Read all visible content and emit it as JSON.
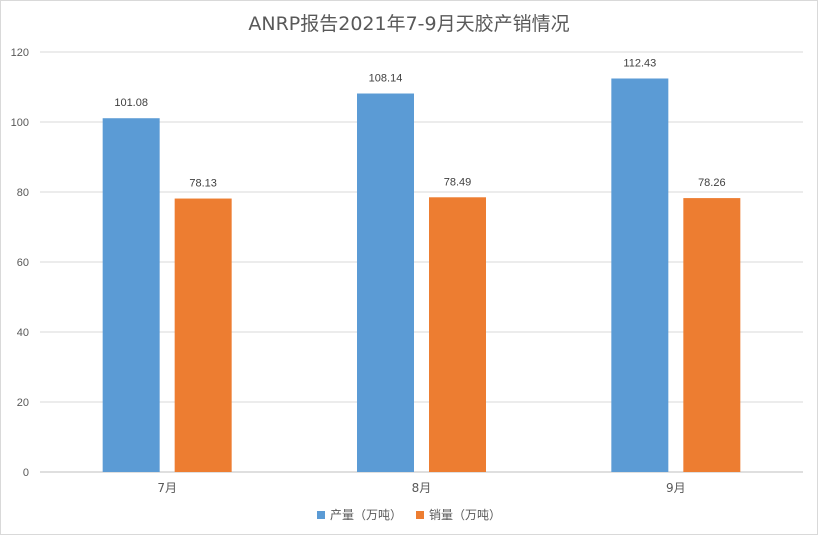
{
  "chart_data": {
    "type": "bar",
    "title": "ANRP报告2021年7-9月天胶产销情况",
    "categories": [
      "7月",
      "8月",
      "9月"
    ],
    "series": [
      {
        "name": "产量（万吨）",
        "values": [
          101.08,
          108.14,
          112.43
        ],
        "color": "#5b9bd5"
      },
      {
        "name": "销量（万吨）",
        "values": [
          78.13,
          78.49,
          78.26
        ],
        "color": "#ed7d31"
      }
    ],
    "ylim": [
      0,
      120
    ],
    "yticks": [
      0,
      20,
      40,
      60,
      80,
      100,
      120
    ],
    "grid": true,
    "data_labels": true,
    "legend_position": "bottom"
  }
}
